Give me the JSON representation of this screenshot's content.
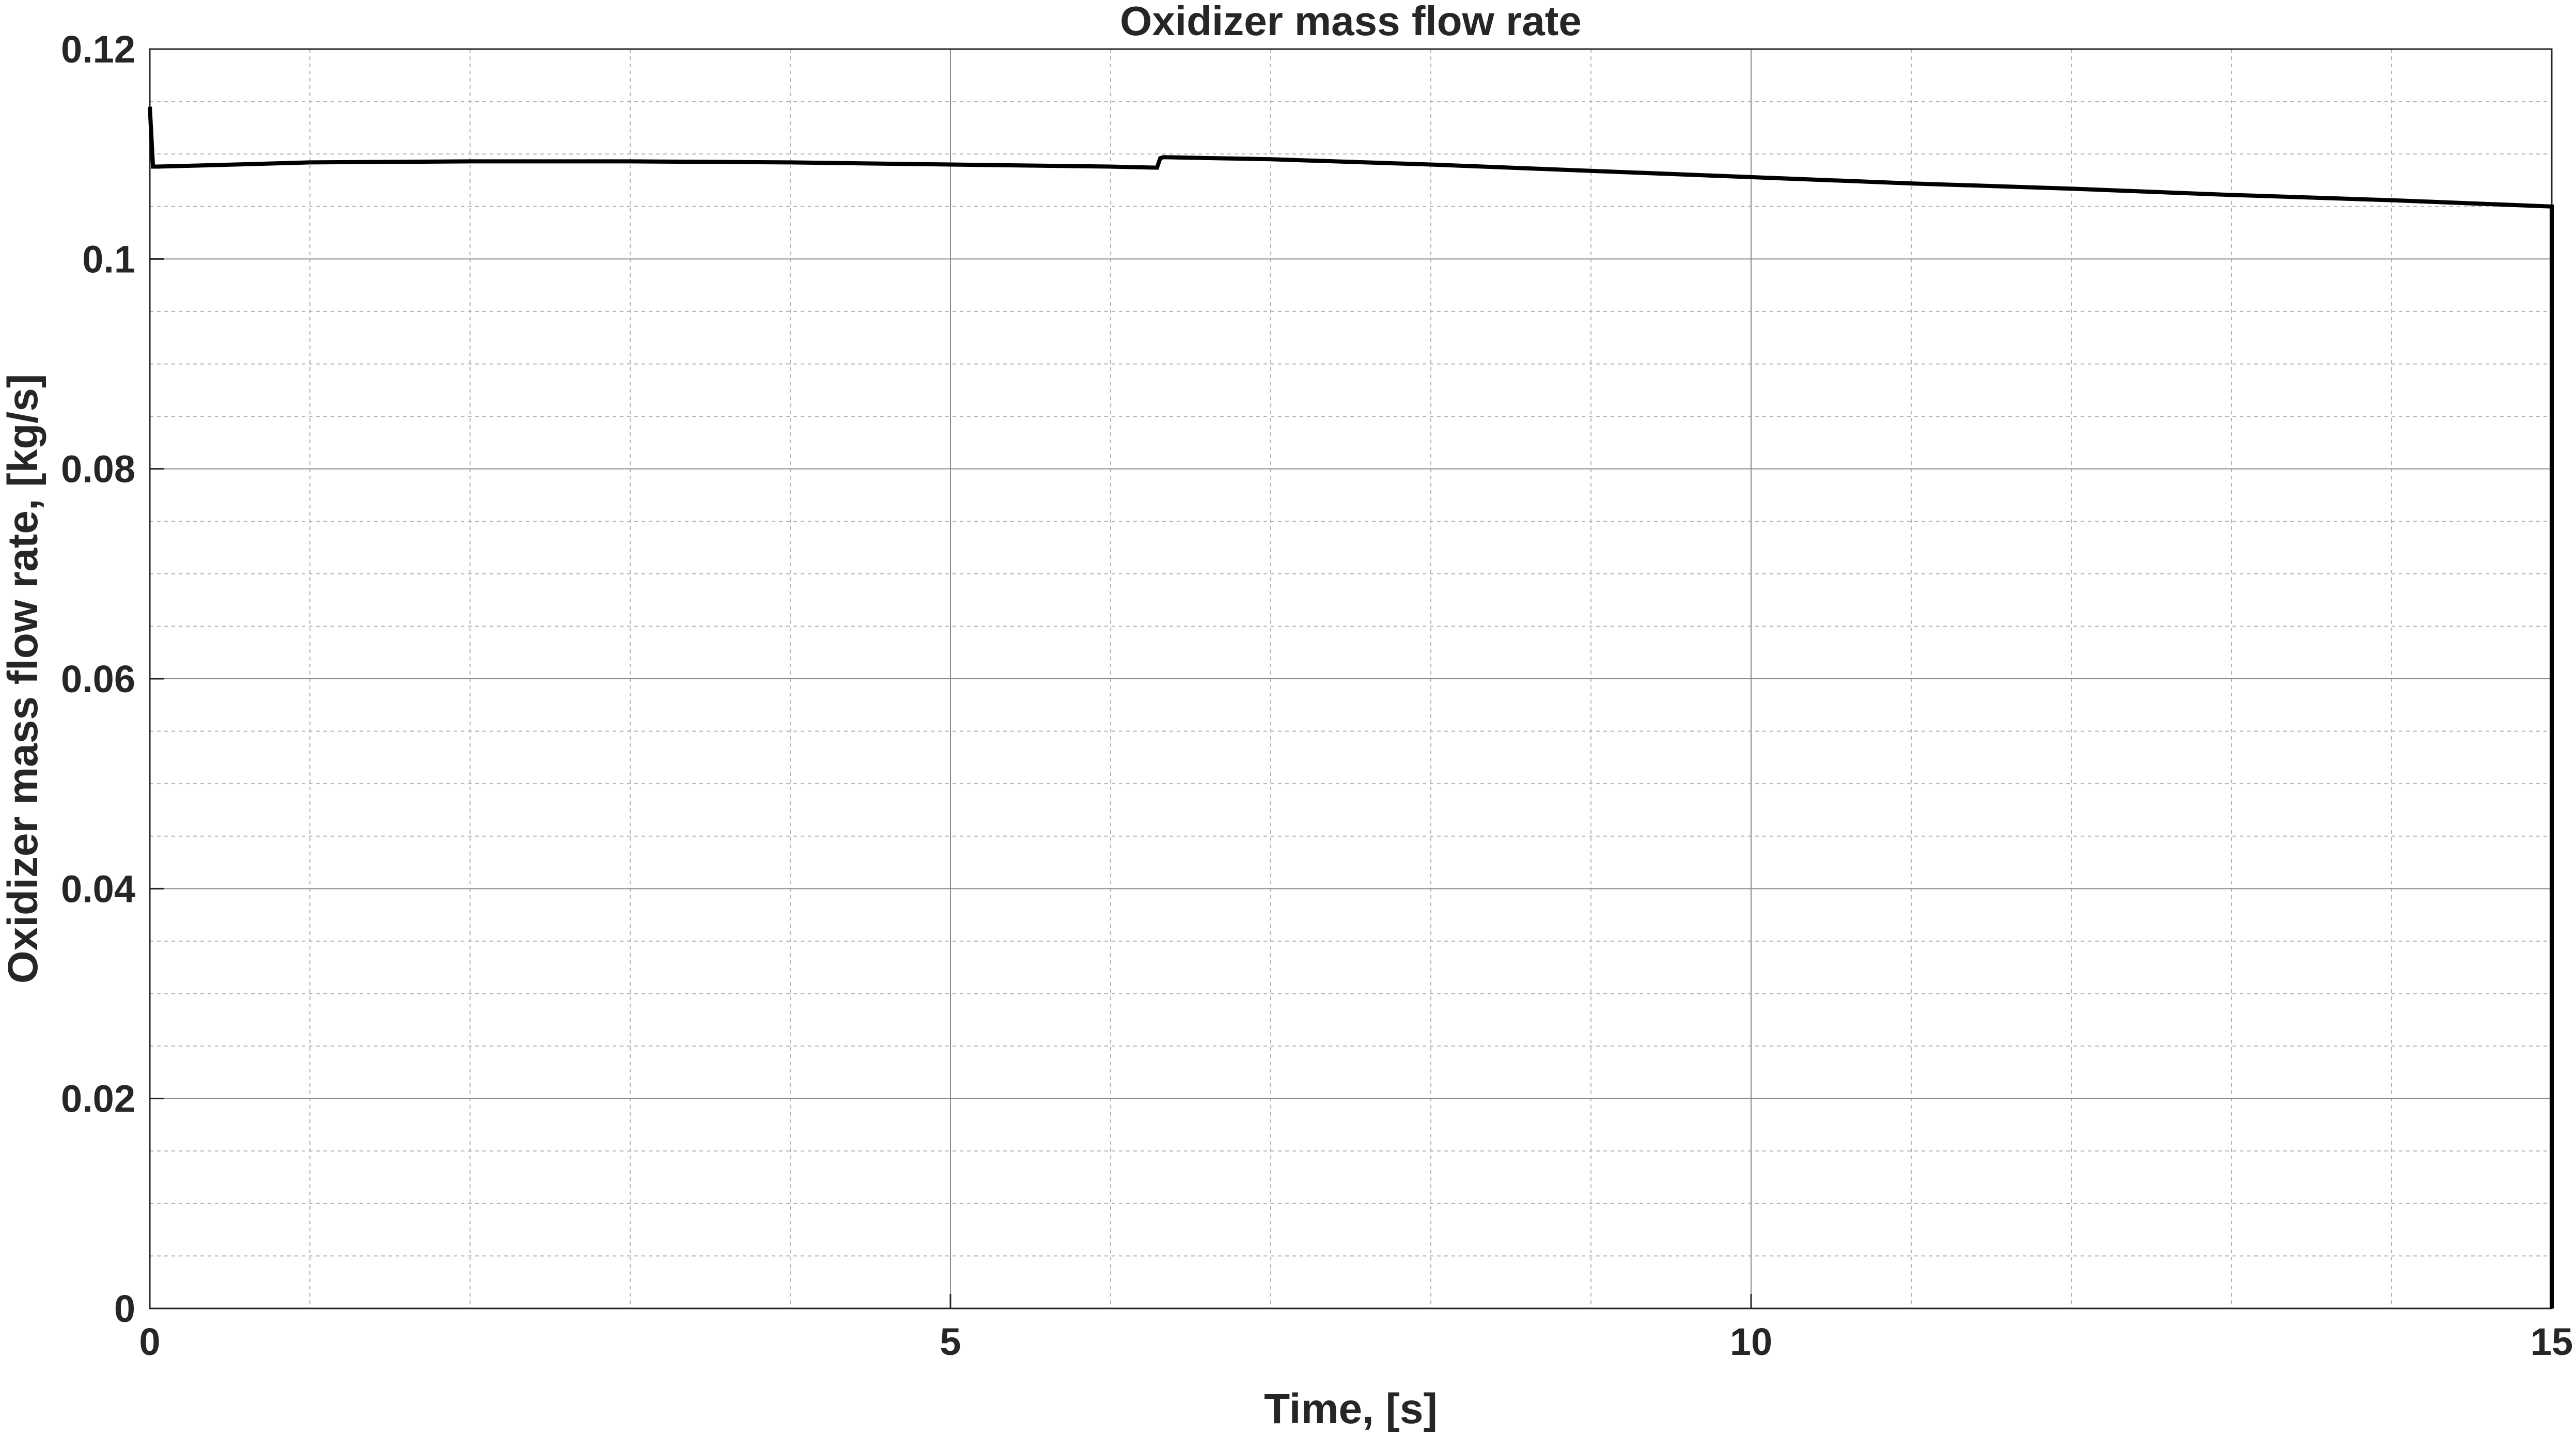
{
  "chart_data": {
    "type": "line",
    "title": "Oxidizer mass flow rate",
    "xlabel": "Time, [s]",
    "ylabel": "Oxidizer mass flow rate, [kg/s]",
    "xlim": [
      0,
      15
    ],
    "ylim": [
      0,
      0.12
    ],
    "x_ticks": [
      0,
      5,
      10,
      15
    ],
    "x_tick_labels": [
      "0",
      "5",
      "10",
      "15"
    ],
    "y_ticks": [
      0,
      0.02,
      0.04,
      0.06,
      0.08,
      0.1,
      0.12
    ],
    "y_tick_labels": [
      "0",
      "0.02",
      "0.04",
      "0.06",
      "0.08",
      "0.1",
      "0.12"
    ],
    "grid": true,
    "minor_grid": true,
    "legend": "none",
    "line_color": "#000000",
    "series": [
      {
        "x": [
          0.0,
          0.02,
          0.05,
          0.3,
          1.0,
          2.0,
          3.0,
          4.0,
          5.0,
          6.0,
          6.29,
          6.31,
          6.33,
          7.0,
          8.0,
          9.0,
          10.0,
          11.0,
          12.0,
          13.0,
          14.0,
          15.0,
          15.0
        ],
        "y": [
          0.1145,
          0.1088,
          0.1088,
          0.1089,
          0.1092,
          0.1093,
          0.1093,
          0.1092,
          0.109,
          0.1088,
          0.1087,
          0.1096,
          0.1097,
          0.1095,
          0.109,
          0.1084,
          0.1078,
          0.1072,
          0.1067,
          0.1061,
          0.1056,
          0.105,
          0.0
        ]
      }
    ]
  }
}
